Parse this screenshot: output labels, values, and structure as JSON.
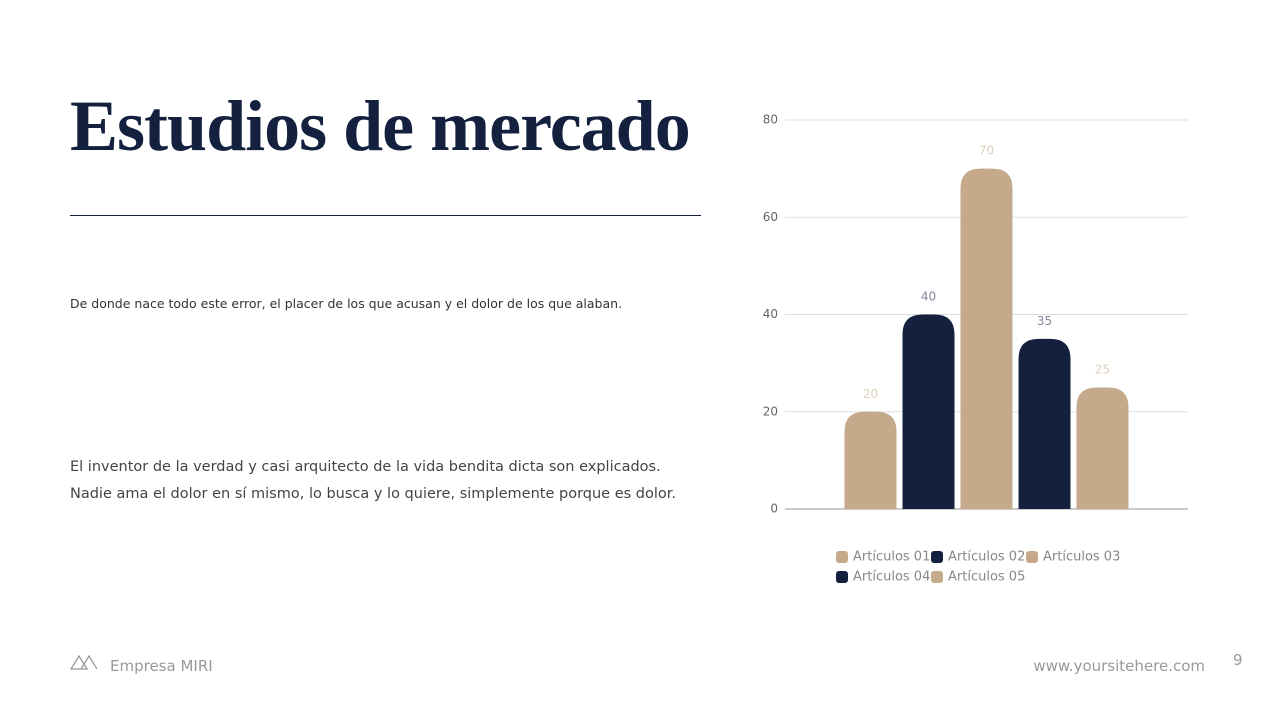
{
  "title": "Estudios de mercado",
  "intro": "De donde nace todo este error, el placer de los que acusan y el dolor de los que alaban.",
  "body": [
    "El inventor de la verdad y casi arquitecto de la vida bendita dicta son explicados.",
    "Nadie ama el dolor en sí mismo, lo busca y lo quiere, simplemente porque es dolor."
  ],
  "footer": {
    "company": "Empresa MIRI",
    "website": "www.yoursitehere.com",
    "page": "9"
  },
  "chart_data": {
    "type": "bar",
    "categories": [
      null
    ],
    "series": [
      {
        "name": "Artículos 01",
        "color": "#c4a98a",
        "values": [
          20
        ]
      },
      {
        "name": "Artículos 02",
        "color": "#13213f",
        "values": [
          40
        ]
      },
      {
        "name": "Artículos 03",
        "color": "#c4a98a",
        "values": [
          70
        ]
      },
      {
        "name": "Artículos 04",
        "color": "#13213f",
        "values": [
          35
        ]
      },
      {
        "name": "Artículos 05",
        "color": "#c4a98a",
        "values": [
          25
        ]
      }
    ],
    "ylim": [
      0,
      80
    ],
    "yticks": [
      0,
      20,
      40,
      60,
      80
    ],
    "grid": true,
    "legend": "bottom",
    "data_labels": true
  }
}
